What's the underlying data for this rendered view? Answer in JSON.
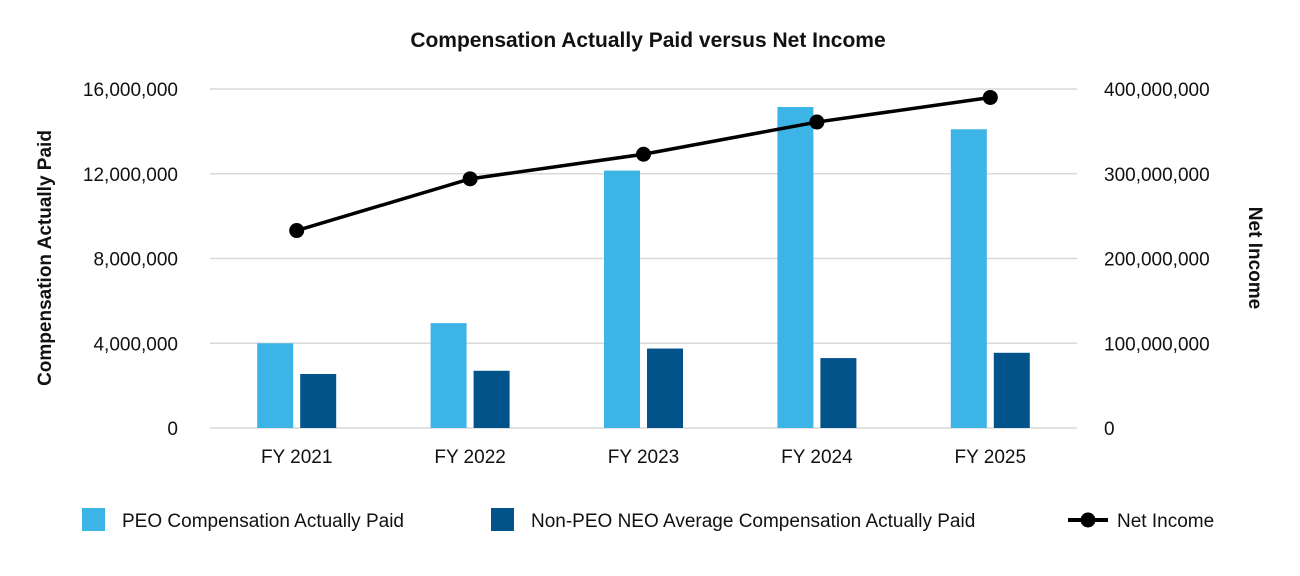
{
  "chart_data": {
    "type": "bar",
    "title": "Compensation Actually Paid versus Net Income",
    "categories": [
      "FY 2021",
      "FY 2022",
      "FY 2023",
      "FY 2024",
      "FY 2025"
    ],
    "y_left": {
      "label": "Compensation Actually Paid",
      "range": [
        0,
        16000000
      ],
      "ticks": [
        0,
        4000000,
        8000000,
        12000000,
        16000000
      ],
      "tick_labels": [
        "0",
        "4,000,000",
        "8,000,000",
        "12,000,000",
        "16,000,000"
      ]
    },
    "y_right": {
      "label": "Net Income",
      "range": [
        0,
        400000000
      ],
      "ticks": [
        0,
        100000000,
        200000000,
        300000000,
        400000000
      ],
      "tick_labels": [
        "0",
        "100,000,000",
        "200,000,000",
        "300,000,000",
        "400,000,000"
      ]
    },
    "series": [
      {
        "name": "PEO Compensation Actually Paid",
        "type": "bar",
        "axis": "left",
        "color": "#3db4e6",
        "values": [
          4000000,
          4950000,
          12150000,
          15150000,
          14100000
        ]
      },
      {
        "name": "Non-PEO NEO Average Compensation Actually Paid",
        "type": "bar",
        "axis": "left",
        "color": "#015389",
        "values": [
          2550000,
          2700000,
          3750000,
          3300000,
          3550000
        ]
      },
      {
        "name": "Net Income",
        "type": "line",
        "axis": "right",
        "color": "#000000",
        "values": [
          233000000,
          294000000,
          323000000,
          361000000,
          390000000
        ]
      }
    ],
    "grid": true,
    "legend_position": "bottom"
  }
}
